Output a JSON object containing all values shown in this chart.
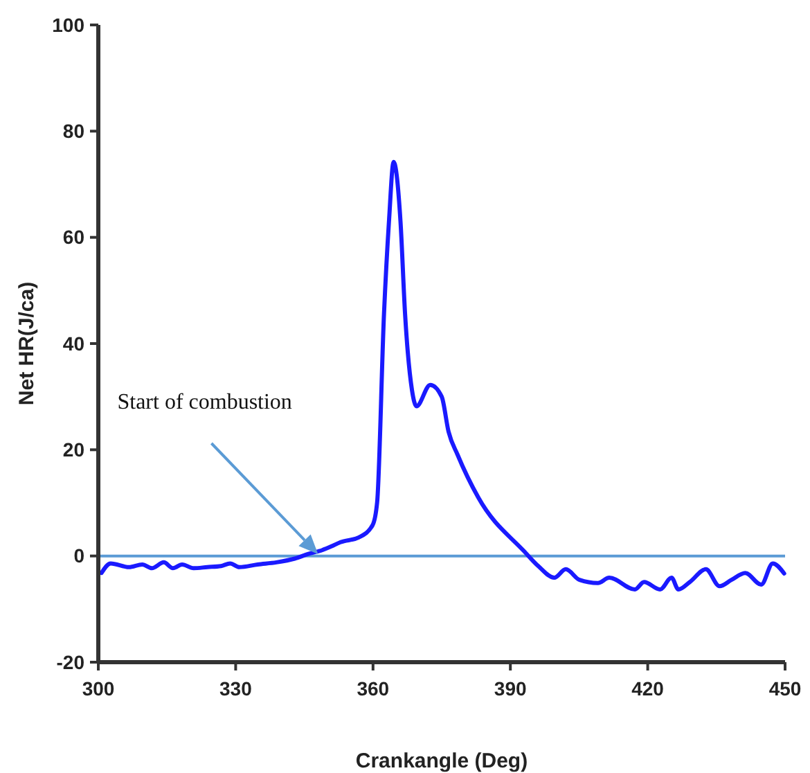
{
  "chart_data": {
    "type": "line",
    "xlabel": "Crankangle (Deg)",
    "ylabel": "Net HR(J/ca)",
    "xlim": [
      300,
      450
    ],
    "xticks": [
      300,
      330,
      360,
      390,
      420,
      450
    ],
    "ylim": [
      -20,
      100
    ],
    "yticks": [
      -20,
      0,
      20,
      40,
      60,
      80,
      100
    ],
    "grid": false,
    "marker": "none",
    "line_style": "solid",
    "ref_lines": [
      {
        "axis": "y",
        "value": 0,
        "color": "#5b9bd5"
      }
    ],
    "annotations": [
      "Start of combustion"
    ],
    "series": [
      {
        "color": "#1a1aff",
        "x": [
          300.7,
          302.7,
          306.7,
          309.6,
          311.7,
          314.3,
          316.3,
          318.3,
          320.8,
          323.8,
          326.8,
          328.8,
          330.8,
          334.8,
          338.9,
          342.9,
          345.9,
          348.9,
          350.9,
          352.9,
          356.9,
          359.9,
          360.9,
          362.4,
          363.5,
          364.5,
          366,
          367,
          368.5,
          369.5,
          372.5,
          375,
          376.5,
          378.5,
          383,
          393.1,
          396.1,
          399.6,
          402.1,
          405.1,
          409.1,
          411.6,
          417.2,
          419.2,
          422.7,
          425.2,
          426.7,
          429.2,
          432.7,
          435.7,
          438.3,
          441.3,
          444.8,
          447.3,
          449.8
        ],
        "values": [
          -3.2,
          -1.4,
          -2.1,
          -1.6,
          -2.3,
          -1.2,
          -2.3,
          -1.6,
          -2.3,
          -2.1,
          -1.9,
          -1.4,
          -2.1,
          -1.6,
          -1.2,
          -0.5,
          0.4,
          1.1,
          1.8,
          2.6,
          3.5,
          5.8,
          10.1,
          45.6,
          63.2,
          74.2,
          63,
          45.6,
          31.3,
          28.2,
          32.2,
          30,
          23.4,
          19,
          11,
          0.8,
          -1.9,
          -4.1,
          -2.5,
          -4.5,
          -5.1,
          -4.1,
          -6.3,
          -4.9,
          -6.3,
          -4.1,
          -6.3,
          -4.9,
          -2.5,
          -5.7,
          -4.5,
          -3.2,
          -5.4,
          -1.4,
          -3.3
        ]
      }
    ]
  }
}
